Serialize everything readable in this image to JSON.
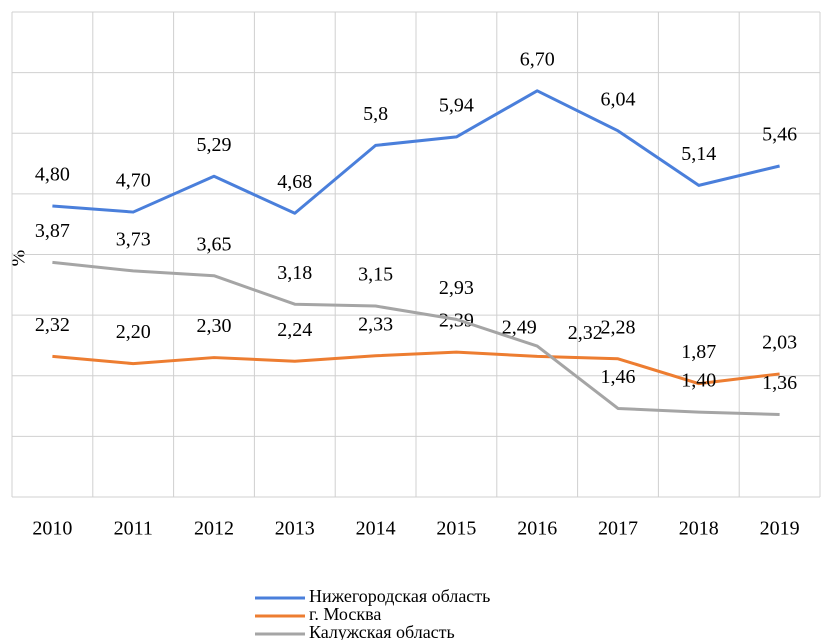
{
  "chart_data": {
    "type": "line",
    "y_label": "%",
    "categories": [
      "2010",
      "2011",
      "2012",
      "2013",
      "2014",
      "2015",
      "2016",
      "2017",
      "2018",
      "2019"
    ],
    "series": [
      {
        "name": "Нижегородская область",
        "color": "#4a7fdb",
        "values": [
          4.8,
          4.7,
          5.29,
          4.68,
          5.8,
          5.94,
          6.7,
          6.04,
          5.14,
          5.46
        ],
        "value_labels": [
          "4,80",
          "4,70",
          "5,29",
          "4,68",
          "5,8",
          "5,94",
          "6,70",
          "6,04",
          "5,14",
          "5,46"
        ]
      },
      {
        "name": "г. Москва",
        "color": "#ed7d31",
        "values": [
          2.32,
          2.2,
          2.3,
          2.24,
          2.33,
          2.39,
          2.32,
          2.28,
          1.87,
          2.03
        ],
        "value_labels": [
          "2,32",
          "2,20",
          "2,30",
          "2,24",
          "2,33",
          "2,39",
          "2,32",
          "2,28",
          "1,87",
          "2,03"
        ]
      },
      {
        "name": "Калужская область",
        "color": "#a5a5a5",
        "values": [
          3.87,
          3.73,
          3.65,
          3.18,
          3.15,
          2.93,
          2.49,
          1.46,
          1.4,
          1.36
        ],
        "value_labels": [
          "3,87",
          "3,73",
          "3,65",
          "3,18",
          "3,15",
          "2,93",
          "2,49",
          "1,46",
          "1,40",
          "1,36"
        ]
      }
    ],
    "ylim": [
      0,
      8
    ],
    "yticks": [
      0,
      1,
      2,
      3,
      4,
      5,
      6,
      7,
      8
    ],
    "grid": true,
    "legend": "bottom"
  }
}
